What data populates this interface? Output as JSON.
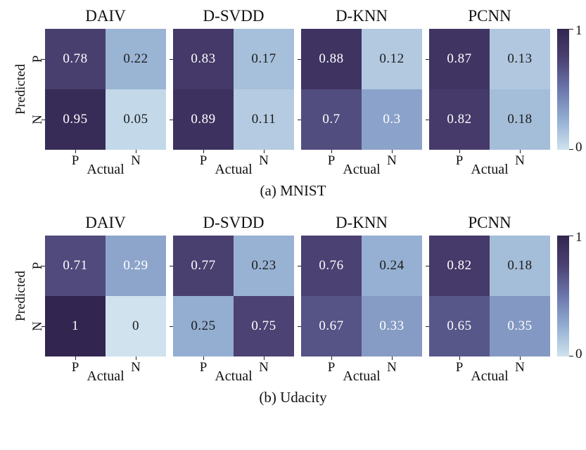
{
  "page": {
    "background": "#ffffff"
  },
  "colormap": {
    "stops": [
      {
        "value": 0,
        "color": "#cfe2ee"
      },
      {
        "value": 0.25,
        "color": "#93aed1"
      },
      {
        "value": 0.5,
        "color": "#6b77ad"
      },
      {
        "value": 0.75,
        "color": "#4c4273"
      },
      {
        "value": 1,
        "color": "#322650"
      }
    ],
    "light_text_threshold": 0.26,
    "text_light": "#ffffff",
    "text_dark": "#1c1c1c",
    "tick_color": "#222222"
  },
  "chart_data": [
    {
      "type": "heatmap",
      "caption": "(a) MNIST",
      "xlabel": "Actual",
      "ylabel": "Predicted",
      "row_labels": [
        "P",
        "N"
      ],
      "col_labels": [
        "P",
        "N"
      ],
      "colorbar": {
        "max_label": "1",
        "min_label": "0",
        "range": [
          0,
          1
        ]
      },
      "matrices": [
        {
          "title": "DAIV",
          "values": [
            [
              "0.78",
              "0.22"
            ],
            [
              "0.95",
              "0.05"
            ]
          ]
        },
        {
          "title": "D-SVDD",
          "values": [
            [
              "0.83",
              "0.17"
            ],
            [
              "0.89",
              "0.11"
            ]
          ]
        },
        {
          "title": "D-KNN",
          "values": [
            [
              "0.88",
              "0.12"
            ],
            [
              "0.7",
              "0.3"
            ]
          ]
        },
        {
          "title": "PCNN",
          "values": [
            [
              "0.87",
              "0.13"
            ],
            [
              "0.82",
              "0.18"
            ]
          ]
        }
      ]
    },
    {
      "type": "heatmap",
      "caption": "(b) Udacity",
      "xlabel": "Actual",
      "ylabel": "Predicted",
      "row_labels": [
        "P",
        "N"
      ],
      "col_labels": [
        "P",
        "N"
      ],
      "colorbar": {
        "max_label": "1",
        "min_label": "0",
        "range": [
          0,
          1
        ]
      },
      "matrices": [
        {
          "title": "DAIV",
          "values": [
            [
              "0.71",
              "0.29"
            ],
            [
              "1",
              "0"
            ]
          ]
        },
        {
          "title": "D-SVDD",
          "values": [
            [
              "0.77",
              "0.23"
            ],
            [
              "0.25",
              "0.75"
            ]
          ]
        },
        {
          "title": "D-KNN",
          "values": [
            [
              "0.76",
              "0.24"
            ],
            [
              "0.67",
              "0.33"
            ]
          ]
        },
        {
          "title": "PCNN",
          "values": [
            [
              "0.82",
              "0.18"
            ],
            [
              "0.65",
              "0.35"
            ]
          ]
        }
      ]
    }
  ]
}
